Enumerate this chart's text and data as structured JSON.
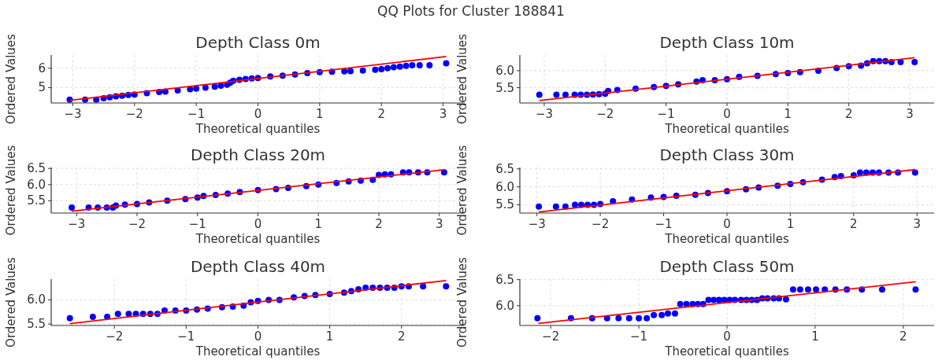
{
  "chart_data": [
    {
      "type": "scatter",
      "title": "Depth Class 0m",
      "xlabel": "Theoretical quantiles",
      "ylabel": "Ordered Values",
      "annotations": [
        "QQ Plots for Cluster 188841"
      ],
      "xlim": [
        -3.35,
        3.35
      ],
      "ylim": [
        4.21,
        6.68
      ],
      "xticks": [
        -3,
        -2,
        -1,
        0,
        1,
        2,
        3
      ],
      "yticks": [
        5,
        6
      ],
      "grid": true,
      "series": [
        {
          "type": "scatter",
          "color": "#0000ff",
          "marker": "circle",
          "x": [
            -3.05,
            -2.8,
            -2.62,
            -2.5,
            -2.4,
            -2.3,
            -2.2,
            -2.1,
            -2,
            -1.8,
            -1.6,
            -1.5,
            -1.3,
            -1.1,
            -1,
            -0.85,
            -0.7,
            -0.6,
            -0.5,
            -0.45,
            -0.4,
            -0.3,
            -0.2,
            -0.1,
            0,
            0.2,
            0.4,
            0.6,
            0.8,
            1,
            1.2,
            1.4,
            1.5,
            1.7,
            1.9,
            2,
            2.1,
            2.2,
            2.3,
            2.4,
            2.5,
            2.62,
            2.78,
            3.05
          ],
          "values": [
            4.38,
            4.38,
            4.38,
            4.45,
            4.5,
            4.55,
            4.58,
            4.62,
            4.65,
            4.72,
            4.78,
            4.8,
            4.86,
            4.92,
            4.95,
            5.0,
            5.05,
            5.1,
            5.15,
            5.25,
            5.35,
            5.4,
            5.45,
            5.48,
            5.5,
            5.58,
            5.62,
            5.68,
            5.75,
            5.8,
            5.82,
            5.84,
            5.85,
            5.88,
            5.92,
            5.95,
            6.0,
            6.05,
            6.08,
            6.12,
            6.15,
            6.15,
            6.15,
            6.25
          ]
        },
        {
          "type": "line",
          "color": "#ff0000",
          "marker": "none",
          "x": [
            -3.05,
            3.05
          ],
          "values": [
            4.35,
            6.6
          ]
        }
      ]
    },
    {
      "type": "scatter",
      "title": "Depth Class 10m",
      "xlabel": "Theoretical quantiles",
      "ylabel": "Ordered Values",
      "xlim": [
        -3.4,
        3.4
      ],
      "ylim": [
        5.05,
        6.46
      ],
      "xticks": [
        -3,
        -2,
        -1,
        0,
        1,
        2,
        3
      ],
      "yticks": [
        {
          "value": 5.5,
          "label": "5.5"
        },
        {
          "value": 6,
          "label": "6.0"
        }
      ],
      "grid": true,
      "series": [
        {
          "type": "scatter",
          "color": "#0000ff",
          "marker": "circle",
          "x": [
            -3.08,
            -2.8,
            -2.65,
            -2.5,
            -2.4,
            -2.3,
            -2.2,
            -2.1,
            -2,
            -1.95,
            -1.8,
            -1.5,
            -1.2,
            -1,
            -0.8,
            -0.5,
            -0.4,
            -0.2,
            0,
            0.2,
            0.5,
            0.8,
            1,
            1.2,
            1.5,
            1.8,
            2,
            2.2,
            2.3,
            2.4,
            2.5,
            2.6,
            2.7,
            2.85,
            3.08
          ],
          "values": [
            5.29,
            5.29,
            5.29,
            5.29,
            5.29,
            5.29,
            5.3,
            5.31,
            5.32,
            5.4,
            5.43,
            5.47,
            5.52,
            5.55,
            5.6,
            5.68,
            5.72,
            5.72,
            5.75,
            5.82,
            5.85,
            5.9,
            5.93,
            5.96,
            6.0,
            6.08,
            6.13,
            6.15,
            6.22,
            6.28,
            6.28,
            6.28,
            6.25,
            6.25,
            6.25
          ]
        },
        {
          "type": "line",
          "color": "#ff0000",
          "marker": "none",
          "x": [
            -3.08,
            3.08
          ],
          "values": [
            5.12,
            6.38
          ]
        }
      ]
    },
    {
      "type": "scatter",
      "title": "Depth Class 20m",
      "xlabel": "Theoretical quantiles",
      "ylabel": "Ordered Values",
      "xlim": [
        -3.42,
        3.42
      ],
      "ylim": [
        5.12,
        6.53
      ],
      "xticks": [
        -3,
        -2,
        -1,
        0,
        1,
        2,
        3
      ],
      "yticks": [
        {
          "value": 5.5,
          "label": "5.5"
        },
        {
          "value": 6,
          "label": "6.0"
        },
        {
          "value": 6.5,
          "label": "6.5"
        }
      ],
      "grid": true,
      "series": [
        {
          "type": "scatter",
          "color": "#0000ff",
          "marker": "circle",
          "x": [
            -3.08,
            -2.8,
            -2.65,
            -2.5,
            -2.4,
            -2.35,
            -2.2,
            -2,
            -1.8,
            -1.5,
            -1.2,
            -1,
            -0.9,
            -0.7,
            -0.5,
            -0.3,
            0,
            0.3,
            0.5,
            0.8,
            1,
            1.3,
            1.5,
            1.7,
            1.9,
            2,
            2.1,
            2.2,
            2.4,
            2.5,
            2.65,
            2.8,
            3.08
          ],
          "values": [
            5.29,
            5.29,
            5.29,
            5.29,
            5.29,
            5.35,
            5.38,
            5.4,
            5.45,
            5.5,
            5.55,
            5.6,
            5.65,
            5.68,
            5.72,
            5.77,
            5.83,
            5.86,
            5.9,
            5.95,
            6.0,
            6.05,
            6.1,
            6.12,
            6.15,
            6.3,
            6.32,
            6.32,
            6.38,
            6.38,
            6.38,
            6.38,
            6.38
          ]
        },
        {
          "type": "line",
          "color": "#ff0000",
          "marker": "none",
          "x": [
            -3.08,
            3.08
          ],
          "values": [
            5.18,
            6.46
          ]
        }
      ]
    },
    {
      "type": "scatter",
      "title": "Depth Class 30m",
      "xlabel": "Theoretical quantiles",
      "ylabel": "Ordered Values",
      "xlim": [
        -3.27,
        3.27
      ],
      "ylim": [
        5.27,
        6.54
      ],
      "xticks": [
        -3,
        -2,
        -1,
        0,
        1,
        2,
        3
      ],
      "yticks": [
        {
          "value": 5.5,
          "label": "5.5"
        },
        {
          "value": 6,
          "label": "6.0"
        },
        {
          "value": 6.5,
          "label": "6.5"
        }
      ],
      "grid": true,
      "series": [
        {
          "type": "scatter",
          "color": "#0000ff",
          "marker": "circle",
          "x": [
            -2.97,
            -2.7,
            -2.55,
            -2.4,
            -2.3,
            -2.2,
            -2.1,
            -2,
            -1.8,
            -1.5,
            -1.2,
            -1,
            -0.8,
            -0.5,
            -0.3,
            0,
            0.3,
            0.5,
            0.8,
            1,
            1.2,
            1.5,
            1.7,
            1.8,
            2,
            2.1,
            2.2,
            2.3,
            2.4,
            2.55,
            2.7,
            2.97
          ],
          "values": [
            5.45,
            5.45,
            5.45,
            5.5,
            5.5,
            5.5,
            5.5,
            5.52,
            5.6,
            5.65,
            5.7,
            5.72,
            5.75,
            5.78,
            5.83,
            5.88,
            5.93,
            5.98,
            6.03,
            6.08,
            6.13,
            6.2,
            6.27,
            6.3,
            6.32,
            6.4,
            6.4,
            6.4,
            6.4,
            6.4,
            6.4,
            6.4
          ]
        },
        {
          "type": "line",
          "color": "#ff0000",
          "marker": "none",
          "x": [
            -2.97,
            2.97
          ],
          "values": [
            5.3,
            6.48
          ]
        }
      ]
    },
    {
      "type": "scatter",
      "title": "Depth Class 40m",
      "xlabel": "Theoretical quantiles",
      "ylabel": "Ordered Values",
      "xlim": [
        -2.88,
        2.88
      ],
      "ylim": [
        5.47,
        6.43
      ],
      "xticks": [
        -2,
        -1,
        0,
        1,
        2
      ],
      "yticks": [
        {
          "value": 5.5,
          "label": "5.5"
        },
        {
          "value": 6,
          "label": "6.0"
        }
      ],
      "grid": true,
      "series": [
        {
          "type": "scatter",
          "color": "#0000ff",
          "marker": "circle",
          "x": [
            -2.62,
            -2.3,
            -2.1,
            -1.95,
            -1.8,
            -1.7,
            -1.6,
            -1.5,
            -1.4,
            -1.3,
            -1.15,
            -1,
            -0.85,
            -0.7,
            -0.5,
            -0.35,
            -0.2,
            -0.1,
            0,
            0.15,
            0.3,
            0.5,
            0.65,
            0.8,
            1,
            1.2,
            1.3,
            1.4,
            1.5,
            1.6,
            1.7,
            1.8,
            1.9,
            2,
            2.1,
            2.3,
            2.62
          ],
          "values": [
            5.62,
            5.65,
            5.65,
            5.71,
            5.71,
            5.71,
            5.71,
            5.71,
            5.71,
            5.78,
            5.78,
            5.78,
            5.8,
            5.82,
            5.85,
            5.86,
            5.88,
            5.95,
            5.98,
            6.0,
            6.0,
            6.05,
            6.08,
            6.1,
            6.12,
            6.15,
            6.18,
            6.22,
            6.25,
            6.25,
            6.25,
            6.25,
            6.25,
            6.28,
            6.28,
            6.28,
            6.28
          ]
        },
        {
          "type": "line",
          "color": "#ff0000",
          "marker": "none",
          "x": [
            -2.62,
            2.62
          ],
          "values": [
            5.51,
            6.4
          ]
        }
      ]
    },
    {
      "type": "scatter",
      "title": "Depth Class 50m",
      "xlabel": "Theoretical quantiles",
      "ylabel": "Ordered Values",
      "xlim": [
        -2.35,
        2.35
      ],
      "ylim": [
        5.62,
        6.51
      ],
      "xticks": [
        -2,
        -1,
        0,
        1,
        2
      ],
      "yticks": [
        {
          "value": 6,
          "label": "6.0"
        },
        {
          "value": 6.5,
          "label": "6.5"
        }
      ],
      "grid": true,
      "series": [
        {
          "type": "scatter",
          "color": "#0000ff",
          "marker": "circle",
          "x": [
            -2.15,
            -1.77,
            -1.53,
            -1.36,
            -1.23,
            -1.11,
            -1.0,
            -0.91,
            -0.83,
            -0.74,
            -0.67,
            -0.59,
            -0.53,
            -0.46,
            -0.39,
            -0.33,
            -0.27,
            -0.21,
            -0.15,
            -0.09,
            -0.03,
            0.03,
            0.09,
            0.16,
            0.22,
            0.28,
            0.34,
            0.4,
            0.46,
            0.53,
            0.59,
            0.67,
            0.75,
            0.83,
            0.92,
            1.01,
            1.11,
            1.23,
            1.36,
            1.53,
            1.76,
            2.14
          ],
          "values": [
            5.76,
            5.76,
            5.76,
            5.76,
            5.76,
            5.76,
            5.76,
            5.76,
            5.82,
            5.82,
            5.85,
            5.85,
            6.03,
            6.03,
            6.03,
            6.03,
            6.03,
            6.11,
            6.11,
            6.11,
            6.11,
            6.11,
            6.11,
            6.11,
            6.11,
            6.11,
            6.11,
            6.14,
            6.14,
            6.14,
            6.14,
            6.12,
            6.31,
            6.31,
            6.31,
            6.31,
            6.31,
            6.31,
            6.31,
            6.31,
            6.31,
            6.31
          ]
        },
        {
          "type": "line",
          "color": "#ff0000",
          "marker": "none",
          "x": [
            -2.14,
            2.14
          ],
          "values": [
            5.66,
            6.46
          ]
        }
      ]
    }
  ]
}
